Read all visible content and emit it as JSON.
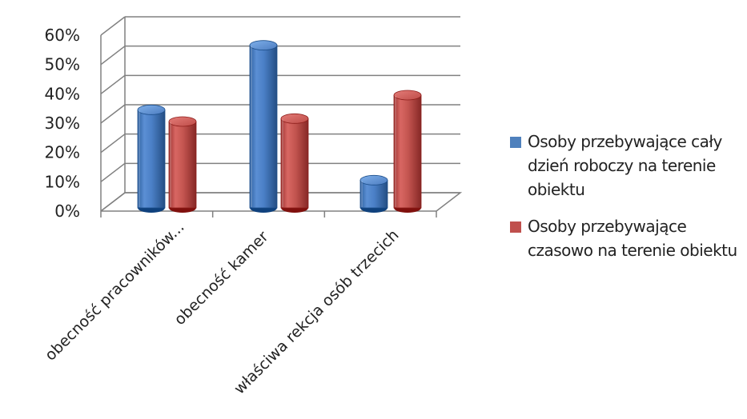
{
  "colors": {
    "series_1": "#4F81BD",
    "series_2": "#C0504D",
    "grid": "#808080",
    "text": "#222222"
  },
  "chart_data": {
    "type": "bar",
    "style": "3d-cylinder",
    "title": "",
    "xlabel": "",
    "ylabel": "",
    "categories": [
      "obecność pracowników...",
      "obecność kamer",
      "właściwa rekcja osób trzecich"
    ],
    "series": [
      {
        "name": "Osoby przebywające cały dzień roboczy na terenie obiektu",
        "values": [
          34,
          56,
          10
        ],
        "color": "#4F81BD"
      },
      {
        "name": "Osoby przebywające czasowo na terenie obiektu",
        "values": [
          30,
          31,
          39
        ],
        "color": "#C0504D"
      }
    ],
    "ylim": [
      0,
      60
    ],
    "yticks": [
      "0%",
      "10%",
      "20%",
      "30%",
      "40%",
      "50%",
      "60%"
    ],
    "grid": true,
    "legend_position": "right"
  }
}
